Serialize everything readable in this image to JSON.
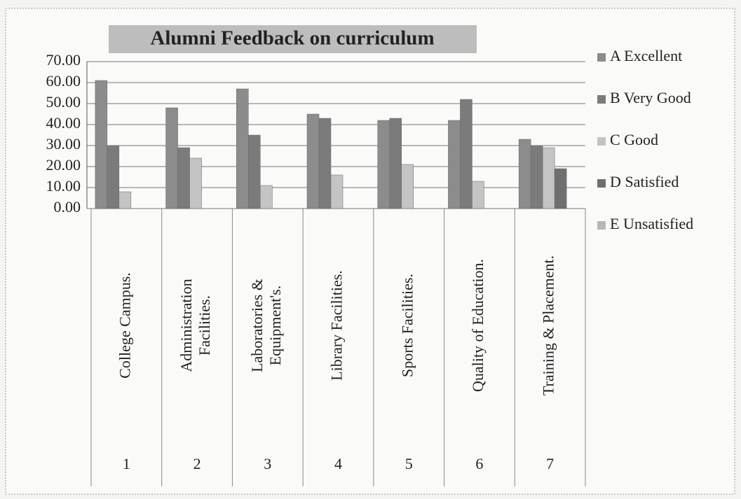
{
  "chart_data": {
    "type": "bar",
    "title": "Alumni Feedback on curriculum",
    "categories": [
      [
        "College Campus."
      ],
      [
        "Administration",
        "Facilities."
      ],
      [
        "Laboratories &",
        "Equipment's."
      ],
      [
        "Library Facilities."
      ],
      [
        "Sports Facilities."
      ],
      [
        "Quality of Education."
      ],
      [
        "Training & Placement."
      ]
    ],
    "category_numbers": [
      "1",
      "2",
      "3",
      "4",
      "5",
      "6",
      "7"
    ],
    "series": [
      {
        "name": "A Excellent",
        "color": "#8c8c8c",
        "values": [
          61,
          48,
          57,
          45,
          42,
          42,
          33
        ]
      },
      {
        "name": "B Very Good",
        "color": "#7b7b7b",
        "values": [
          30,
          29,
          35,
          43,
          43,
          52,
          30
        ]
      },
      {
        "name": "C Good",
        "color": "#c4c4c4",
        "values": [
          8,
          24,
          11,
          16,
          21,
          13,
          29
        ]
      },
      {
        "name": "D Satisfied",
        "color": "#6f6f6f",
        "values": [
          0,
          0,
          0,
          0,
          0,
          0,
          19
        ]
      },
      {
        "name": "E Unsatisfied",
        "color": "#b8b8b8",
        "values": [
          0,
          0,
          0,
          0,
          0,
          0,
          0
        ]
      }
    ],
    "ylim": [
      0,
      70
    ],
    "yticks": [
      {
        "value": 0,
        "label": "0.00"
      },
      {
        "value": 10,
        "label": "10.00"
      },
      {
        "value": 20,
        "label": "20.00"
      },
      {
        "value": 30,
        "label": "30.00"
      },
      {
        "value": 40,
        "label": "40.00"
      },
      {
        "value": 50,
        "label": "50.00"
      },
      {
        "value": 60,
        "label": "60.00"
      },
      {
        "value": 70,
        "label": "70.00"
      }
    ],
    "grid": true,
    "legend": "right"
  }
}
